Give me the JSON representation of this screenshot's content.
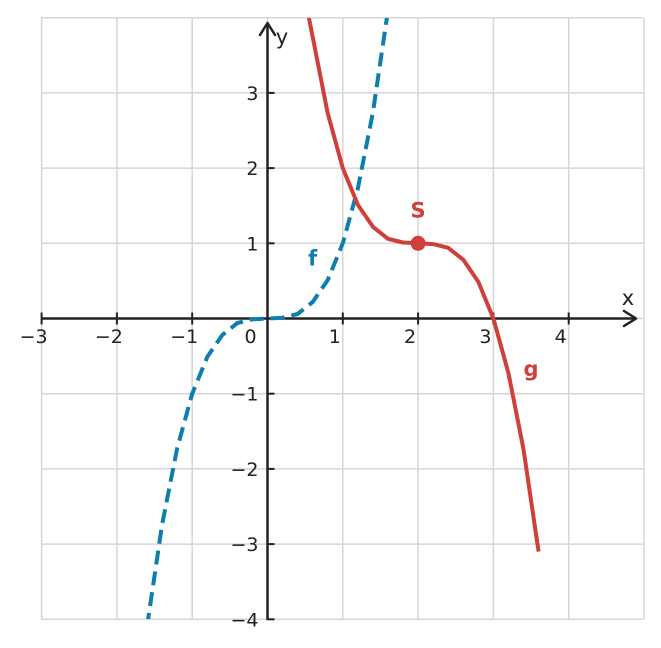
{
  "chart_data": {
    "type": "line",
    "title": "",
    "xlabel": "x",
    "ylabel": "y",
    "xlim": [
      -3,
      5
    ],
    "ylim": [
      -4,
      4
    ],
    "grid": true,
    "x_ticks": [
      -3,
      -2,
      -1,
      0,
      1,
      2,
      3,
      4
    ],
    "y_ticks": [
      -4,
      -3,
      -2,
      -1,
      1,
      2,
      3
    ],
    "series": [
      {
        "name": "f",
        "style": "dashed",
        "color": "#0e7fad",
        "x": [
          -1.6,
          -1.4,
          -1.2,
          -1.0,
          -0.8,
          -0.6,
          -0.4,
          -0.2,
          0.0,
          0.2,
          0.4,
          0.6,
          0.8,
          1.0,
          1.2,
          1.4,
          1.6
        ],
        "y": [
          -4.1,
          -2.74,
          -1.73,
          -1.0,
          -0.51,
          -0.22,
          -0.06,
          -0.01,
          0.0,
          0.01,
          0.06,
          0.22,
          0.51,
          1.0,
          1.73,
          2.74,
          4.1
        ]
      },
      {
        "name": "g",
        "style": "solid",
        "color": "#d03f3a",
        "x": [
          0.55,
          0.8,
          1.0,
          1.2,
          1.4,
          1.6,
          1.8,
          2.0,
          2.2,
          2.4,
          2.6,
          2.8,
          3.0,
          3.2,
          3.4,
          3.6
        ],
        "y": [
          4.0,
          2.73,
          2.0,
          1.51,
          1.22,
          1.06,
          1.01,
          1.0,
          0.99,
          0.94,
          0.78,
          0.49,
          0.0,
          -0.73,
          -1.74,
          -3.1
        ]
      }
    ],
    "points": [
      {
        "label": "S",
        "x": 2,
        "y": 1,
        "color": "#d03f3a"
      }
    ],
    "annotations": [
      {
        "text": "f",
        "x": 0.6,
        "y": 0.8,
        "color": "#0e7fad"
      },
      {
        "text": "g",
        "x": 3.5,
        "y": -0.67,
        "color": "#d03f3a"
      }
    ]
  }
}
